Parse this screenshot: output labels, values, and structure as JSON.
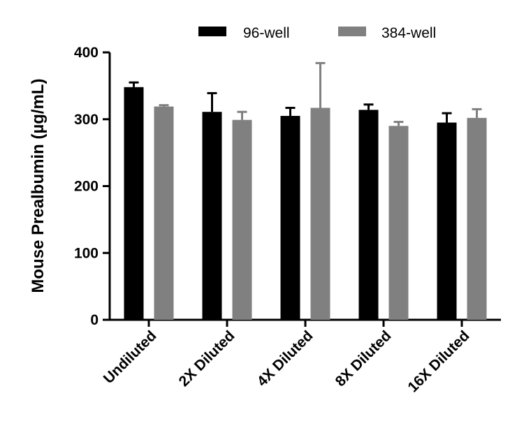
{
  "chart_data": {
    "type": "bar",
    "title": "",
    "xlabel": "",
    "ylabel": "Mouse Prealbumin (µg/mL)",
    "ylim": [
      0,
      400
    ],
    "yticks": [
      0,
      100,
      200,
      300,
      400
    ],
    "categories": [
      "Undiluted",
      "2X Diluted",
      "4X Diluted",
      "8X Diluted",
      "16X Diluted"
    ],
    "series": [
      {
        "name": "96-well",
        "color": "#000000",
        "values": [
          348,
          311,
          305,
          314,
          295
        ],
        "errors": [
          7,
          28,
          12,
          8,
          14
        ]
      },
      {
        "name": "384-well",
        "color": "#808080",
        "values": [
          319,
          299,
          317,
          290,
          302
        ],
        "errors": [
          2,
          12,
          67,
          6,
          13
        ]
      }
    ],
    "legend_position": "top-center",
    "grid": false
  }
}
